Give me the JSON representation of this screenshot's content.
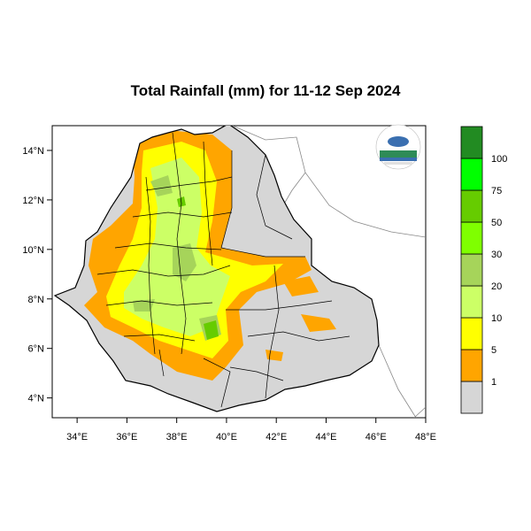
{
  "title": "Total Rainfall (mm) for 11-12 Sep 2024",
  "map": {
    "lon_range": [
      33,
      48
    ],
    "lat_range": [
      3.2,
      15
    ],
    "x_ticks": [
      "34°E",
      "36°E",
      "38°E",
      "40°E",
      "42°E",
      "44°E",
      "46°E",
      "48°E"
    ],
    "y_ticks": [
      "14°N",
      "12°N",
      "10°N",
      "8°N",
      "6°N",
      "4°N"
    ],
    "land_color": "#d6d6d6",
    "logo_icon": "ethiopian-meteorology-institute-logo"
  },
  "legend": {
    "levels": [
      {
        "label": "",
        "color": "#d6d6d6"
      },
      {
        "label": "1",
        "color": "#ffa500"
      },
      {
        "label": "5",
        "color": "#ffff00"
      },
      {
        "label": "10",
        "color": "#ccff66"
      },
      {
        "label": "20",
        "color": "#a6d45a"
      },
      {
        "label": "30",
        "color": "#7fff00"
      },
      {
        "label": "50",
        "color": "#66cc00"
      },
      {
        "label": "75",
        "color": "#00ff00"
      },
      {
        "label": "100",
        "color": "#228b22"
      }
    ]
  }
}
